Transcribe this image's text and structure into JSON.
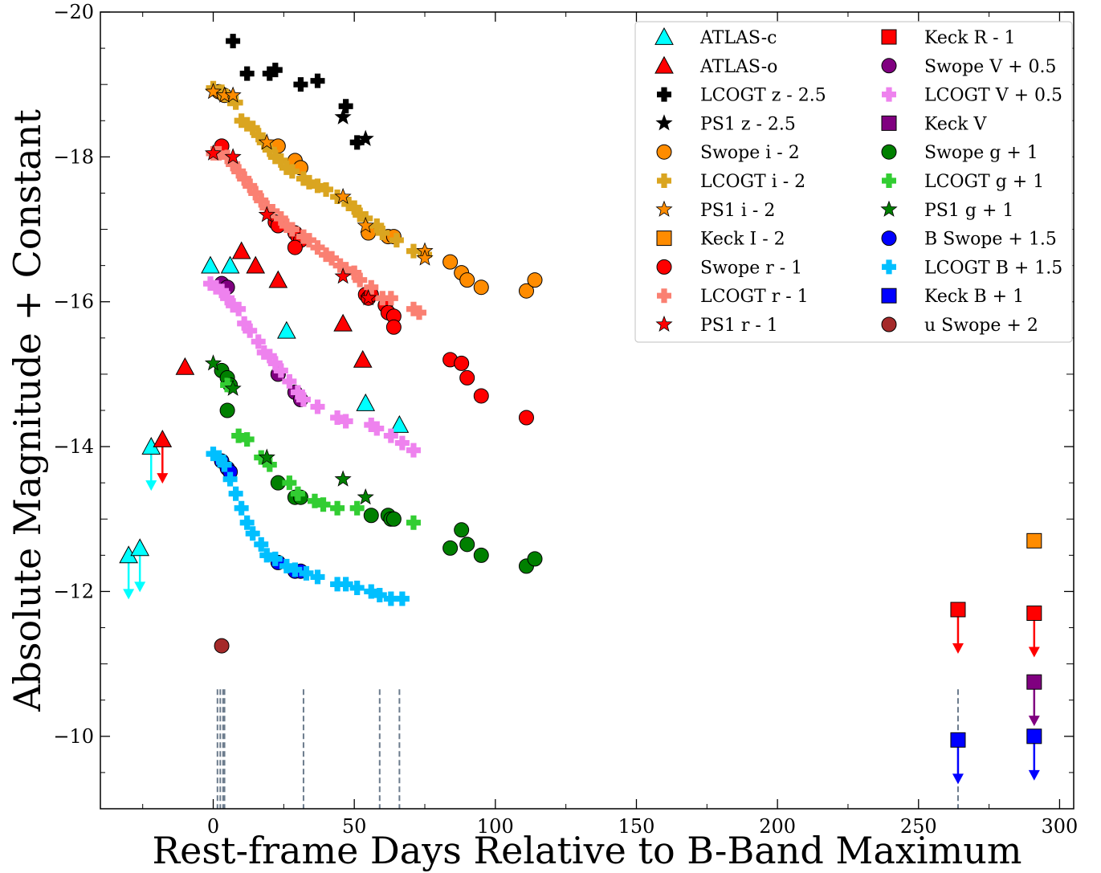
{
  "chart_data": {
    "type": "scatter",
    "xlabel": "Rest-frame Days Relative to B-Band Maximum",
    "ylabel": "Absolute Magnitude + Constant",
    "xlim": [
      -40,
      305
    ],
    "ylim": [
      -9.0,
      -20.0
    ],
    "y_inverted": true,
    "x_ticks": [
      0,
      50,
      100,
      150,
      200,
      250,
      300
    ],
    "x_tick_labels": [
      "0",
      "50",
      "100",
      "150",
      "200",
      "250",
      "300"
    ],
    "y_ticks": [
      -20,
      -18,
      -16,
      -14,
      -12,
      -10
    ],
    "y_tick_labels": [
      "−20",
      "−18",
      "−16",
      "−14",
      "−12",
      "−10"
    ],
    "grid": false,
    "legend_position": "top-right",
    "spectra_epochs": [
      1.5,
      2.5,
      3.5,
      4.0,
      32,
      59,
      66,
      264
    ],
    "series": [
      {
        "name": "ATLAS-c",
        "marker": "triangle",
        "color": "#00ffff",
        "points": [
          [
            -1,
            -16.5
          ],
          [
            6,
            -16.5
          ],
          [
            26,
            -15.6
          ],
          [
            54,
            -14.6
          ],
          [
            66,
            -14.3
          ]
        ],
        "limits": [
          [
            -30,
            -12.5
          ],
          [
            -26,
            -12.6
          ],
          [
            -22,
            -14.0
          ]
        ]
      },
      {
        "name": "ATLAS-o",
        "marker": "triangle",
        "color": "#ff0000",
        "points": [
          [
            -10,
            -15.1
          ],
          [
            10,
            -16.7
          ],
          [
            15,
            -16.5
          ],
          [
            23,
            -16.3
          ],
          [
            46,
            -15.7
          ],
          [
            53,
            -15.2
          ]
        ],
        "limits": [
          [
            -18,
            -14.1
          ]
        ]
      },
      {
        "name": "LCOGT z - 2.5",
        "marker": "plus",
        "color": "#000000",
        "points": [
          [
            7,
            -19.6
          ],
          [
            12,
            -19.15
          ],
          [
            20,
            -19.15
          ],
          [
            22,
            -19.2
          ],
          [
            31,
            -19.0
          ],
          [
            37,
            -19.05
          ],
          [
            47,
            -18.7
          ],
          [
            51,
            -18.2
          ]
        ]
      },
      {
        "name": "PS1 z - 2.5",
        "marker": "star",
        "color": "#000000",
        "points": [
          [
            46,
            -18.55
          ],
          [
            54,
            -18.25
          ]
        ]
      },
      {
        "name": "Swope i - 2",
        "marker": "circle",
        "color": "#ff8c00",
        "points": [
          [
            2,
            -18.9
          ],
          [
            4,
            -18.85
          ],
          [
            23,
            -18.15
          ],
          [
            29,
            -17.95
          ],
          [
            31,
            -17.85
          ],
          [
            55,
            -16.95
          ],
          [
            62,
            -16.9
          ],
          [
            64,
            -16.9
          ],
          [
            84,
            -16.55
          ],
          [
            88,
            -16.4
          ],
          [
            90,
            -16.3
          ],
          [
            95,
            -16.2
          ],
          [
            111,
            -16.15
          ],
          [
            114,
            -16.3
          ]
        ]
      },
      {
        "name": "LCOGT i - 2",
        "marker": "plus",
        "color": "#daa520",
        "points": [
          [
            0,
            -18.95
          ],
          [
            3,
            -18.9
          ],
          [
            6,
            -18.8
          ],
          [
            8,
            -18.75
          ],
          [
            10,
            -18.5
          ],
          [
            12,
            -18.45
          ],
          [
            14,
            -18.4
          ],
          [
            16,
            -18.3
          ],
          [
            18,
            -18.2
          ],
          [
            20,
            -18.1
          ],
          [
            22,
            -18.0
          ],
          [
            24,
            -17.95
          ],
          [
            26,
            -17.85
          ],
          [
            28,
            -17.8
          ],
          [
            32,
            -17.7
          ],
          [
            34,
            -17.65
          ],
          [
            37,
            -17.6
          ],
          [
            40,
            -17.55
          ],
          [
            44,
            -17.45
          ],
          [
            48,
            -17.35
          ],
          [
            50,
            -17.3
          ],
          [
            52,
            -17.2
          ],
          [
            54,
            -17.15
          ],
          [
            58,
            -17.05
          ],
          [
            60,
            -16.95
          ],
          [
            65,
            -16.85
          ],
          [
            71,
            -16.7
          ],
          [
            75,
            -16.65
          ]
        ]
      },
      {
        "name": "PS1 i - 2",
        "marker": "star",
        "color": "#ff8c00",
        "points": [
          [
            0,
            -18.9
          ],
          [
            4,
            -18.85
          ],
          [
            7,
            -18.85
          ],
          [
            19,
            -18.2
          ],
          [
            46,
            -17.45
          ],
          [
            54,
            -17.05
          ],
          [
            75,
            -16.7
          ],
          [
            75,
            -16.6
          ]
        ]
      },
      {
        "name": "Keck I - 2",
        "marker": "square",
        "color": "#ff8c00",
        "points": [
          [
            291,
            -12.7
          ]
        ]
      },
      {
        "name": "Swope r - 1",
        "marker": "circle",
        "color": "#ff0000",
        "points": [
          [
            3,
            -18.15
          ],
          [
            22,
            -17.1
          ],
          [
            23,
            -17.05
          ],
          [
            29,
            -16.95
          ],
          [
            30,
            -16.9
          ],
          [
            31,
            -16.85
          ],
          [
            29,
            -16.75
          ],
          [
            54,
            -16.1
          ],
          [
            55,
            -16.05
          ],
          [
            56,
            -16.1
          ],
          [
            61,
            -15.95
          ],
          [
            62,
            -15.85
          ],
          [
            64,
            -15.8
          ],
          [
            64,
            -15.65
          ],
          [
            84,
            -15.2
          ],
          [
            88,
            -15.15
          ],
          [
            90,
            -14.95
          ],
          [
            95,
            -14.7
          ],
          [
            111,
            -14.4
          ]
        ]
      },
      {
        "name": "LCOGT r - 1",
        "marker": "plus",
        "color": "#fa8072",
        "points": [
          [
            0,
            -18.05
          ],
          [
            2,
            -18.05
          ],
          [
            5,
            -18.0
          ],
          [
            7,
            -17.9
          ],
          [
            9,
            -17.8
          ],
          [
            11,
            -17.7
          ],
          [
            13,
            -17.6
          ],
          [
            15,
            -17.5
          ],
          [
            17,
            -17.4
          ],
          [
            19,
            -17.3
          ],
          [
            21,
            -17.25
          ],
          [
            24,
            -17.15
          ],
          [
            26,
            -17.05
          ],
          [
            28,
            -17.0
          ],
          [
            32,
            -16.9
          ],
          [
            34,
            -16.85
          ],
          [
            37,
            -16.75
          ],
          [
            40,
            -16.65
          ],
          [
            42,
            -16.6
          ],
          [
            45,
            -16.5
          ],
          [
            47,
            -16.45
          ],
          [
            50,
            -16.4
          ],
          [
            52,
            -16.3
          ],
          [
            56,
            -16.2
          ],
          [
            60,
            -16.05
          ],
          [
            63,
            -16.05
          ],
          [
            71,
            -15.9
          ],
          [
            73,
            -15.85
          ]
        ]
      },
      {
        "name": "PS1 r - 1",
        "marker": "star",
        "color": "#ff0000",
        "points": [
          [
            0,
            -18.05
          ],
          [
            7,
            -18.0
          ],
          [
            19,
            -17.2
          ],
          [
            46,
            -16.35
          ],
          [
            55,
            -16.05
          ]
        ]
      },
      {
        "name": "Keck R - 1",
        "marker": "square",
        "color": "#ff0000",
        "points": [],
        "limits": [
          [
            264,
            -11.75
          ],
          [
            291,
            -11.7
          ]
        ]
      },
      {
        "name": "Swope V + 0.5",
        "marker": "circle",
        "color": "#800080",
        "points": [
          [
            3,
            -16.25
          ],
          [
            5,
            -16.2
          ],
          [
            23,
            -15.0
          ],
          [
            29,
            -14.75
          ],
          [
            31,
            -14.65
          ]
        ]
      },
      {
        "name": "LCOGT V + 0.5",
        "marker": "plus",
        "color": "#ee82ee",
        "points": [
          [
            -1,
            -16.25
          ],
          [
            1,
            -16.2
          ],
          [
            3,
            -16.15
          ],
          [
            5,
            -16.05
          ],
          [
            7,
            -15.95
          ],
          [
            9,
            -15.9
          ],
          [
            11,
            -15.7
          ],
          [
            13,
            -15.6
          ],
          [
            16,
            -15.45
          ],
          [
            18,
            -15.3
          ],
          [
            20,
            -15.25
          ],
          [
            22,
            -15.15
          ],
          [
            24,
            -15.05
          ],
          [
            27,
            -14.9
          ],
          [
            30,
            -14.75
          ],
          [
            32,
            -14.65
          ],
          [
            37,
            -14.55
          ],
          [
            44,
            -14.4
          ],
          [
            47,
            -14.35
          ],
          [
            56,
            -14.3
          ],
          [
            58,
            -14.25
          ],
          [
            63,
            -14.15
          ],
          [
            67,
            -14.05
          ],
          [
            71,
            -13.95
          ]
        ]
      },
      {
        "name": "Keck V",
        "marker": "square",
        "color": "#800080",
        "points": [],
        "limits": [
          [
            291,
            -10.75
          ]
        ]
      },
      {
        "name": "Swope g + 1",
        "marker": "circle",
        "color": "#008000",
        "points": [
          [
            3,
            -15.05
          ],
          [
            5,
            -14.95
          ],
          [
            6,
            -14.85
          ],
          [
            5,
            -14.5
          ],
          [
            23,
            -13.5
          ],
          [
            29,
            -13.3
          ],
          [
            31,
            -13.3
          ],
          [
            56,
            -13.05
          ],
          [
            62,
            -13.05
          ],
          [
            63,
            -13.0
          ],
          [
            64,
            -13.0
          ],
          [
            84,
            -12.6
          ],
          [
            88,
            -12.85
          ],
          [
            90,
            -12.65
          ],
          [
            95,
            -12.5
          ],
          [
            111,
            -12.35
          ],
          [
            114,
            -12.45
          ]
        ]
      },
      {
        "name": "LCOGT g + 1",
        "marker": "plus",
        "color": "#32cd32",
        "points": [
          [
            5,
            -14.85
          ],
          [
            9,
            -14.15
          ],
          [
            12,
            -14.1
          ],
          [
            17,
            -13.85
          ],
          [
            20,
            -13.75
          ],
          [
            27,
            -13.5
          ],
          [
            30,
            -13.35
          ],
          [
            36,
            -13.25
          ],
          [
            39,
            -13.2
          ],
          [
            44,
            -13.15
          ],
          [
            51,
            -13.15
          ],
          [
            71,
            -12.95
          ]
        ]
      },
      {
        "name": "PS1 g + 1",
        "marker": "star",
        "color": "#008000",
        "points": [
          [
            0,
            -15.15
          ],
          [
            7,
            -14.8
          ],
          [
            19,
            -13.85
          ],
          [
            46,
            -13.55
          ],
          [
            54,
            -13.3
          ]
        ]
      },
      {
        "name": "B Swope + 1.5",
        "marker": "circle",
        "color": "#0000ff",
        "points": [
          [
            3,
            -13.8
          ],
          [
            5,
            -13.7
          ],
          [
            6,
            -13.65
          ],
          [
            23,
            -12.4
          ],
          [
            29,
            -12.28
          ],
          [
            31,
            -12.28
          ]
        ]
      },
      {
        "name": "LCOGT B + 1.5",
        "marker": "plus",
        "color": "#00bfff",
        "points": [
          [
            0,
            -13.9
          ],
          [
            2,
            -13.85
          ],
          [
            4,
            -13.75
          ],
          [
            6,
            -13.55
          ],
          [
            8,
            -13.35
          ],
          [
            10,
            -13.15
          ],
          [
            12,
            -12.95
          ],
          [
            14,
            -12.8
          ],
          [
            17,
            -12.65
          ],
          [
            19,
            -12.5
          ],
          [
            22,
            -12.45
          ],
          [
            26,
            -12.35
          ],
          [
            29,
            -12.3
          ],
          [
            33,
            -12.25
          ],
          [
            37,
            -12.2
          ],
          [
            44,
            -12.1
          ],
          [
            47,
            -12.1
          ],
          [
            51,
            -12.05
          ],
          [
            56,
            -12.0
          ],
          [
            59,
            -11.95
          ],
          [
            63,
            -11.9
          ],
          [
            67,
            -11.9
          ]
        ]
      },
      {
        "name": "Keck B + 1",
        "marker": "square",
        "color": "#0000ff",
        "points": [],
        "limits": [
          [
            264,
            -9.95
          ],
          [
            291,
            -10.0
          ]
        ]
      },
      {
        "name": "u Swope + 2",
        "marker": "circle",
        "color": "#a52a2a",
        "points": [
          [
            3,
            -11.25
          ]
        ]
      }
    ]
  }
}
